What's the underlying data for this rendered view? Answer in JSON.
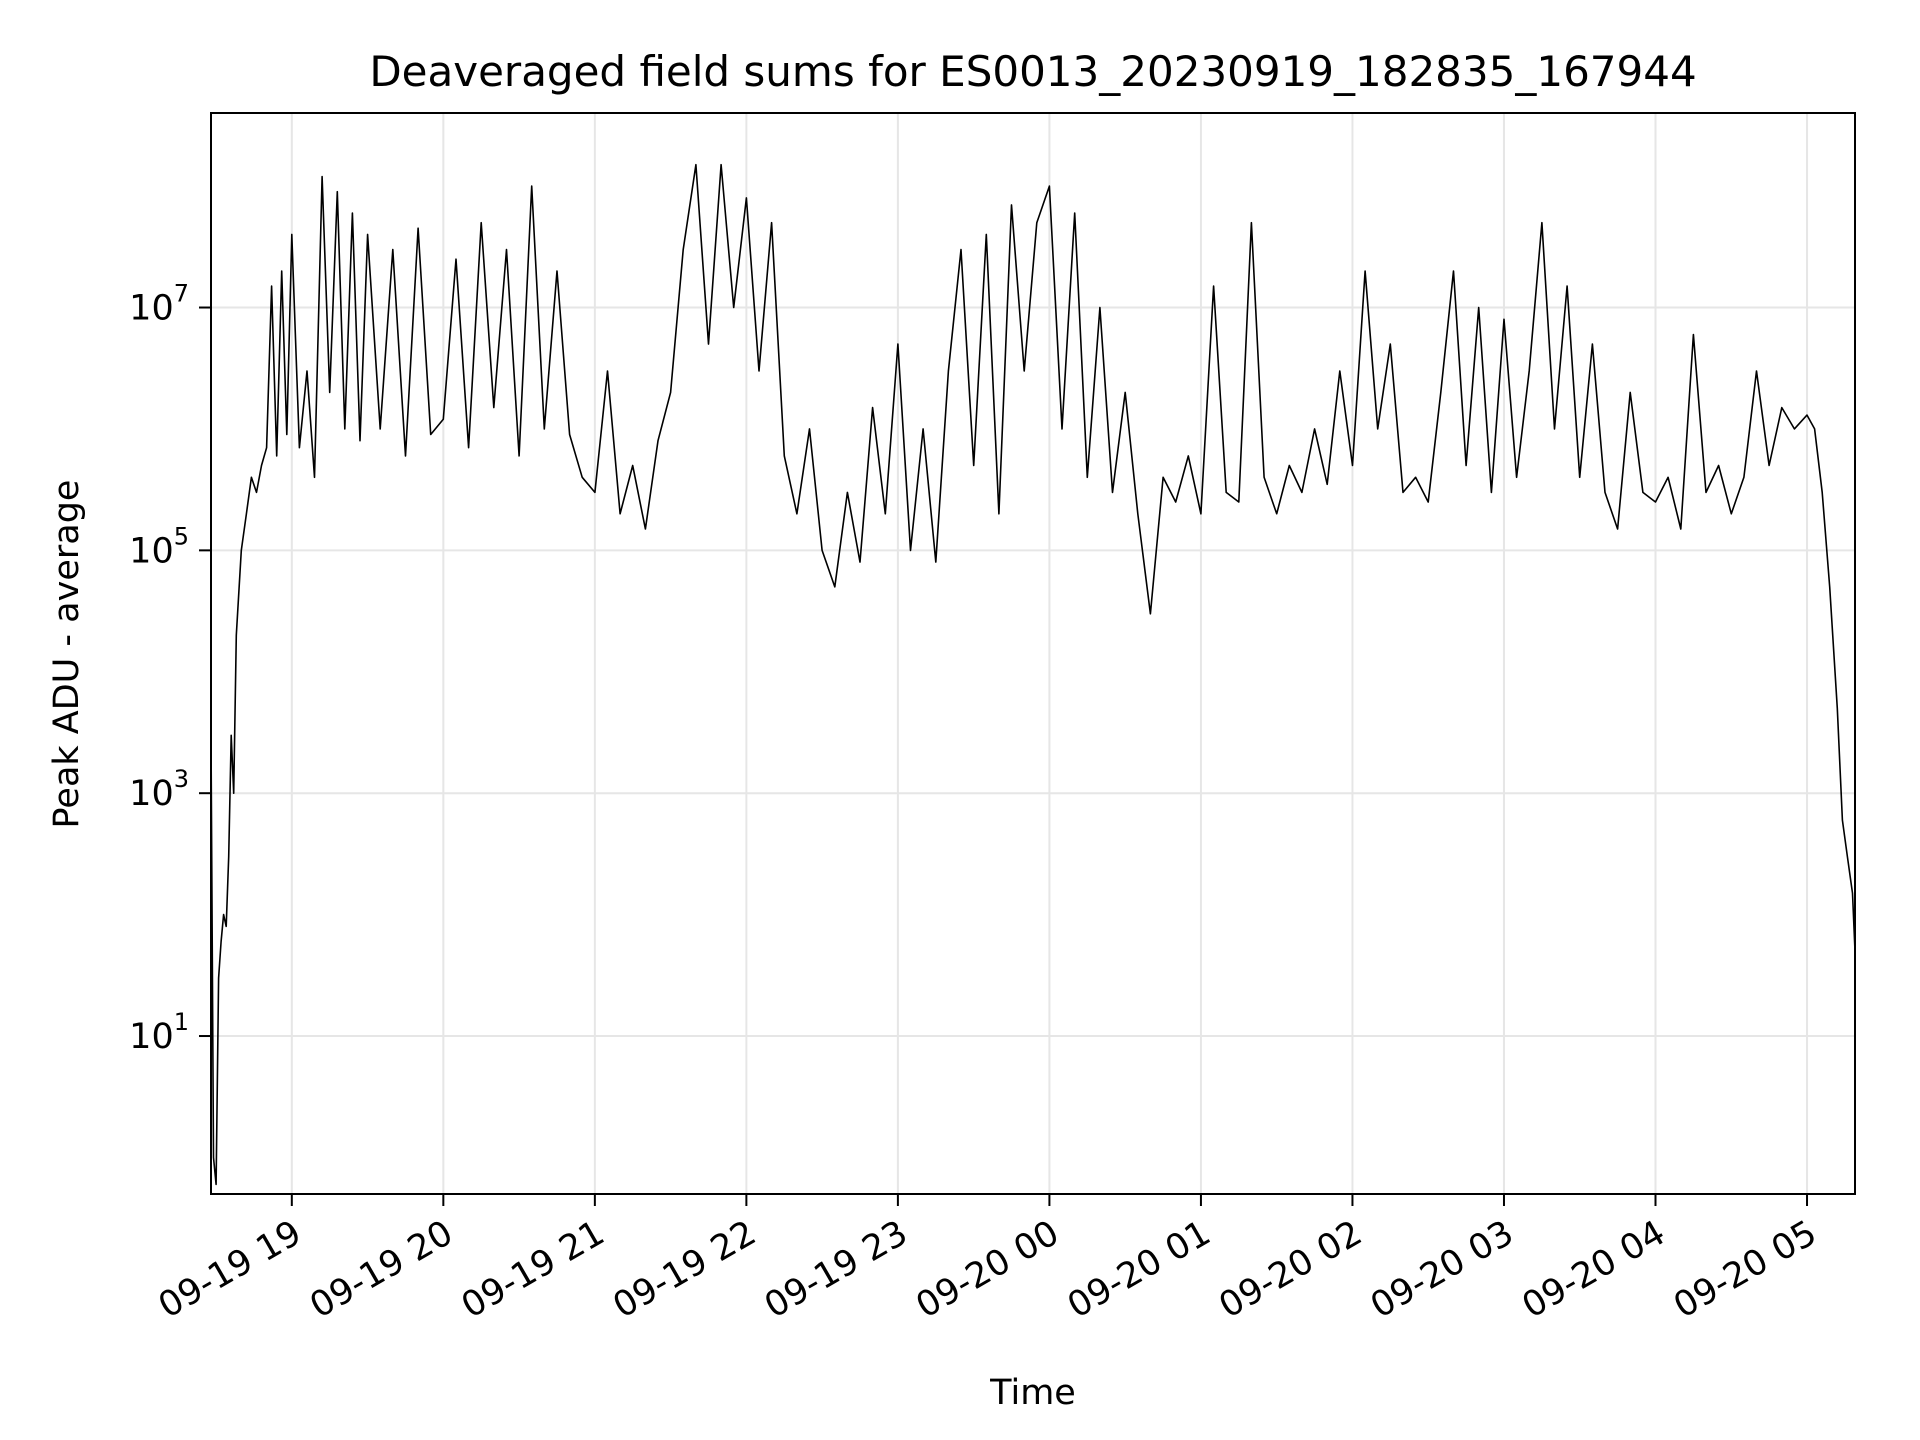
{
  "chart_data": {
    "type": "line",
    "title": "Deaveraged field sums for ES0013_20230919_182835_167944",
    "xlabel": "Time",
    "ylabel": "Peak ADU - average",
    "y_scale": "log",
    "ylim": [
      0.5,
      400000000
    ],
    "xlim": [
      "2023-09-19 18:28",
      "2023-09-20 05:19"
    ],
    "grid": true,
    "line_color": "#000000",
    "grid_color": "#e6e6e6",
    "x_ticks": [
      {
        "value": "2023-09-19 19:00",
        "label": "09-19 19"
      },
      {
        "value": "2023-09-19 20:00",
        "label": "09-19 20"
      },
      {
        "value": "2023-09-19 21:00",
        "label": "09-19 21"
      },
      {
        "value": "2023-09-19 22:00",
        "label": "09-19 22"
      },
      {
        "value": "2023-09-19 23:00",
        "label": "09-19 23"
      },
      {
        "value": "2023-09-20 00:00",
        "label": "09-20 00"
      },
      {
        "value": "2023-09-20 01:00",
        "label": "09-20 01"
      },
      {
        "value": "2023-09-20 02:00",
        "label": "09-20 02"
      },
      {
        "value": "2023-09-20 03:00",
        "label": "09-20 03"
      },
      {
        "value": "2023-09-20 04:00",
        "label": "09-20 04"
      },
      {
        "value": "2023-09-20 05:00",
        "label": "09-20 05"
      }
    ],
    "y_ticks": [
      {
        "value": 10,
        "base": "10",
        "exp": "1"
      },
      {
        "value": 1000,
        "base": "10",
        "exp": "3"
      },
      {
        "value": 100000,
        "base": "10",
        "exp": "5"
      },
      {
        "value": 10000000,
        "base": "10",
        "exp": "7"
      }
    ],
    "series": [
      {
        "points": [
          [
            "2023-09-19 18:28",
            3000
          ],
          [
            "2023-09-19 18:29",
            1
          ],
          [
            "2023-09-19 18:30",
            0.6
          ],
          [
            "2023-09-19 18:31",
            30
          ],
          [
            "2023-09-19 18:32",
            60
          ],
          [
            "2023-09-19 18:33",
            100
          ],
          [
            "2023-09-19 18:34",
            80
          ],
          [
            "2023-09-19 18:35",
            300
          ],
          [
            "2023-09-19 18:36",
            3000
          ],
          [
            "2023-09-19 18:37",
            1000
          ],
          [
            "2023-09-19 18:38",
            20000
          ],
          [
            "2023-09-19 18:40",
            100000
          ],
          [
            "2023-09-19 18:42",
            200000
          ],
          [
            "2023-09-19 18:44",
            400000
          ],
          [
            "2023-09-19 18:46",
            300000
          ],
          [
            "2023-09-19 18:48",
            500000
          ],
          [
            "2023-09-19 18:50",
            700000
          ],
          [
            "2023-09-19 18:52",
            15000000
          ],
          [
            "2023-09-19 18:54",
            600000
          ],
          [
            "2023-09-19 18:56",
            20000000
          ],
          [
            "2023-09-19 18:58",
            900000
          ],
          [
            "2023-09-19 19:00",
            40000000
          ],
          [
            "2023-09-19 19:03",
            700000
          ],
          [
            "2023-09-19 19:06",
            3000000
          ],
          [
            "2023-09-19 19:09",
            400000
          ],
          [
            "2023-09-19 19:12",
            120000000
          ],
          [
            "2023-09-19 19:15",
            2000000
          ],
          [
            "2023-09-19 19:18",
            90000000
          ],
          [
            "2023-09-19 19:21",
            1000000
          ],
          [
            "2023-09-19 19:24",
            60000000
          ],
          [
            "2023-09-19 19:27",
            800000
          ],
          [
            "2023-09-19 19:30",
            40000000
          ],
          [
            "2023-09-19 19:35",
            1000000
          ],
          [
            "2023-09-19 19:40",
            30000000
          ],
          [
            "2023-09-19 19:45",
            600000
          ],
          [
            "2023-09-19 19:50",
            45000000
          ],
          [
            "2023-09-19 19:55",
            900000
          ],
          [
            "2023-09-19 20:00",
            1200000
          ],
          [
            "2023-09-19 20:05",
            25000000
          ],
          [
            "2023-09-19 20:10",
            700000
          ],
          [
            "2023-09-19 20:15",
            50000000
          ],
          [
            "2023-09-19 20:20",
            1500000
          ],
          [
            "2023-09-19 20:25",
            30000000
          ],
          [
            "2023-09-19 20:30",
            600000
          ],
          [
            "2023-09-19 20:35",
            100000000
          ],
          [
            "2023-09-19 20:40",
            1000000
          ],
          [
            "2023-09-19 20:45",
            20000000
          ],
          [
            "2023-09-19 20:50",
            900000
          ],
          [
            "2023-09-19 20:55",
            400000
          ],
          [
            "2023-09-19 21:00",
            300000
          ],
          [
            "2023-09-19 21:05",
            3000000
          ],
          [
            "2023-09-19 21:10",
            200000
          ],
          [
            "2023-09-19 21:15",
            500000
          ],
          [
            "2023-09-19 21:20",
            150000
          ],
          [
            "2023-09-19 21:25",
            800000
          ],
          [
            "2023-09-19 21:30",
            2000000
          ],
          [
            "2023-09-19 21:35",
            30000000
          ],
          [
            "2023-09-19 21:40",
            150000000
          ],
          [
            "2023-09-19 21:45",
            5000000
          ],
          [
            "2023-09-19 21:50",
            150000000
          ],
          [
            "2023-09-19 21:55",
            10000000
          ],
          [
            "2023-09-19 22:00",
            80000000
          ],
          [
            "2023-09-19 22:05",
            3000000
          ],
          [
            "2023-09-19 22:10",
            50000000
          ],
          [
            "2023-09-19 22:15",
            600000
          ],
          [
            "2023-09-19 22:20",
            200000
          ],
          [
            "2023-09-19 22:25",
            1000000
          ],
          [
            "2023-09-19 22:30",
            100000
          ],
          [
            "2023-09-19 22:35",
            50000
          ],
          [
            "2023-09-19 22:40",
            300000
          ],
          [
            "2023-09-19 22:45",
            80000
          ],
          [
            "2023-09-19 22:50",
            1500000
          ],
          [
            "2023-09-19 22:55",
            200000
          ],
          [
            "2023-09-19 23:00",
            5000000
          ],
          [
            "2023-09-19 23:05",
            100000
          ],
          [
            "2023-09-19 23:10",
            1000000
          ],
          [
            "2023-09-19 23:15",
            80000
          ],
          [
            "2023-09-19 23:20",
            3000000
          ],
          [
            "2023-09-19 23:25",
            30000000
          ],
          [
            "2023-09-19 23:30",
            500000
          ],
          [
            "2023-09-19 23:35",
            40000000
          ],
          [
            "2023-09-19 23:40",
            200000
          ],
          [
            "2023-09-19 23:45",
            70000000
          ],
          [
            "2023-09-19 23:50",
            3000000
          ],
          [
            "2023-09-19 23:55",
            50000000
          ],
          [
            "2023-09-20 00:00",
            100000000
          ],
          [
            "2023-09-20 00:05",
            1000000
          ],
          [
            "2023-09-20 00:10",
            60000000
          ],
          [
            "2023-09-20 00:15",
            400000
          ],
          [
            "2023-09-20 00:20",
            10000000
          ],
          [
            "2023-09-20 00:25",
            300000
          ],
          [
            "2023-09-20 00:30",
            2000000
          ],
          [
            "2023-09-20 00:35",
            200000
          ],
          [
            "2023-09-20 00:40",
            30000
          ],
          [
            "2023-09-20 00:45",
            400000
          ],
          [
            "2023-09-20 00:50",
            250000
          ],
          [
            "2023-09-20 00:55",
            600000
          ],
          [
            "2023-09-20 01:00",
            200000
          ],
          [
            "2023-09-20 01:05",
            15000000
          ],
          [
            "2023-09-20 01:10",
            300000
          ],
          [
            "2023-09-20 01:15",
            250000
          ],
          [
            "2023-09-20 01:20",
            50000000
          ],
          [
            "2023-09-20 01:25",
            400000
          ],
          [
            "2023-09-20 01:30",
            200000
          ],
          [
            "2023-09-20 01:35",
            500000
          ],
          [
            "2023-09-20 01:40",
            300000
          ],
          [
            "2023-09-20 01:45",
            1000000
          ],
          [
            "2023-09-20 01:50",
            350000
          ],
          [
            "2023-09-20 01:55",
            3000000
          ],
          [
            "2023-09-20 02:00",
            500000
          ],
          [
            "2023-09-20 02:05",
            20000000
          ],
          [
            "2023-09-20 02:10",
            1000000
          ],
          [
            "2023-09-20 02:15",
            5000000
          ],
          [
            "2023-09-20 02:20",
            300000
          ],
          [
            "2023-09-20 02:25",
            400000
          ],
          [
            "2023-09-20 02:30",
            250000
          ],
          [
            "2023-09-20 02:35",
            2000000
          ],
          [
            "2023-09-20 02:40",
            20000000
          ],
          [
            "2023-09-20 02:45",
            500000
          ],
          [
            "2023-09-20 02:50",
            10000000
          ],
          [
            "2023-09-20 02:55",
            300000
          ],
          [
            "2023-09-20 03:00",
            8000000
          ],
          [
            "2023-09-20 03:05",
            400000
          ],
          [
            "2023-09-20 03:10",
            3000000
          ],
          [
            "2023-09-20 03:15",
            50000000
          ],
          [
            "2023-09-20 03:20",
            1000000
          ],
          [
            "2023-09-20 03:25",
            15000000
          ],
          [
            "2023-09-20 03:30",
            400000
          ],
          [
            "2023-09-20 03:35",
            5000000
          ],
          [
            "2023-09-20 03:40",
            300000
          ],
          [
            "2023-09-20 03:45",
            150000
          ],
          [
            "2023-09-20 03:50",
            2000000
          ],
          [
            "2023-09-20 03:55",
            300000
          ],
          [
            "2023-09-20 04:00",
            250000
          ],
          [
            "2023-09-20 04:05",
            400000
          ],
          [
            "2023-09-20 04:10",
            150000
          ],
          [
            "2023-09-20 04:15",
            6000000
          ],
          [
            "2023-09-20 04:20",
            300000
          ],
          [
            "2023-09-20 04:25",
            500000
          ],
          [
            "2023-09-20 04:30",
            200000
          ],
          [
            "2023-09-20 04:35",
            400000
          ],
          [
            "2023-09-20 04:40",
            3000000
          ],
          [
            "2023-09-20 04:45",
            500000
          ],
          [
            "2023-09-20 04:50",
            1500000
          ],
          [
            "2023-09-20 04:55",
            1000000
          ],
          [
            "2023-09-20 05:00",
            1300000
          ],
          [
            "2023-09-20 05:03",
            1000000
          ],
          [
            "2023-09-20 05:06",
            300000
          ],
          [
            "2023-09-20 05:09",
            50000
          ],
          [
            "2023-09-20 05:12",
            5000
          ],
          [
            "2023-09-20 05:14",
            600
          ],
          [
            "2023-09-20 05:16",
            300
          ],
          [
            "2023-09-20 05:18",
            150
          ],
          [
            "2023-09-20 05:19",
            50
          ]
        ]
      }
    ]
  }
}
